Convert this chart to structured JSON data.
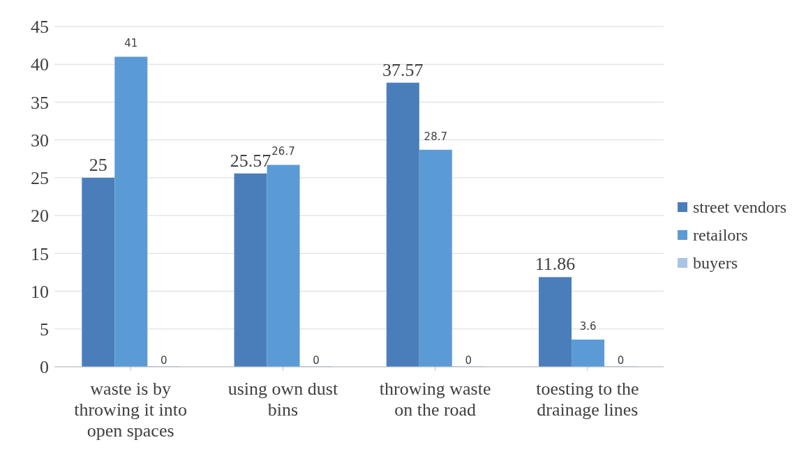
{
  "chart_data": {
    "type": "bar",
    "categories": [
      "waste is by throwing it into open spaces",
      "using own dust bins",
      "throwing waste on the road",
      "toesting to the drainage lines"
    ],
    "series": [
      {
        "name": "street vendors",
        "color": "#4a7ebb",
        "values": [
          25,
          25.57,
          37.57,
          11.86
        ]
      },
      {
        "name": "retailors",
        "color": "#5b9bd5",
        "values": [
          41,
          26.7,
          28.7,
          3.6
        ]
      },
      {
        "name": "buyers",
        "color": "#a9c4e6",
        "values": [
          0,
          0,
          0,
          0
        ]
      }
    ],
    "ylim": [
      0,
      45
    ],
    "yticks": [
      0,
      5,
      10,
      15,
      20,
      25,
      30,
      35,
      40,
      45
    ],
    "grid": "y",
    "legend": "right",
    "data_labels": true
  }
}
